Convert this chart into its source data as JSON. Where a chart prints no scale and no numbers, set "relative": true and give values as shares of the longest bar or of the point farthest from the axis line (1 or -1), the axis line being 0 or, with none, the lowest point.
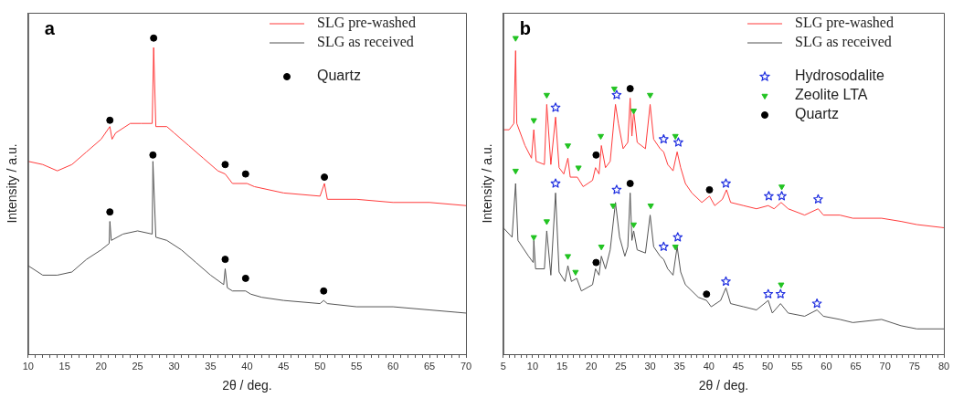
{
  "chart_data": [
    {
      "type": "line",
      "title": "a",
      "xlabel": "2θ / deg.",
      "ylabel": "Intensity / a.u.",
      "relative": true,
      "xlim": [
        10,
        70
      ],
      "legend": "top right",
      "grid": false,
      "xticks": [
        10,
        {
          "value": 11,
          "label": null
        },
        {
          "value": 12,
          "label": null
        },
        {
          "value": 13,
          "label": null
        },
        {
          "value": 14,
          "label": null
        },
        15,
        {
          "value": 16,
          "label": null
        },
        {
          "value": 17,
          "label": null
        },
        {
          "value": 18,
          "label": null
        },
        {
          "value": 19,
          "label": null
        },
        20,
        {
          "value": 21,
          "label": null
        },
        {
          "value": 22,
          "label": null
        },
        {
          "value": 23,
          "label": null
        },
        {
          "value": 24,
          "label": null
        },
        25,
        {
          "value": 26,
          "label": null
        },
        {
          "value": 27,
          "label": null
        },
        {
          "value": 28,
          "label": null
        },
        {
          "value": 29,
          "label": null
        },
        30,
        {
          "value": 31,
          "label": null
        },
        {
          "value": 32,
          "label": null
        },
        {
          "value": 33,
          "label": null
        },
        {
          "value": 34,
          "label": null
        },
        35,
        {
          "value": 36,
          "label": null
        },
        {
          "value": 37,
          "label": null
        },
        {
          "value": 38,
          "label": null
        },
        {
          "value": 39,
          "label": null
        },
        40,
        {
          "value": 41,
          "label": null
        },
        {
          "value": 42,
          "label": null
        },
        {
          "value": 43,
          "label": null
        },
        {
          "value": 44,
          "label": null
        },
        45,
        {
          "value": 46,
          "label": null
        },
        {
          "value": 47,
          "label": null
        },
        {
          "value": 48,
          "label": null
        },
        {
          "value": 49,
          "label": null
        },
        50,
        {
          "value": 51,
          "label": null
        },
        {
          "value": 52,
          "label": null
        },
        {
          "value": 53,
          "label": null
        },
        {
          "value": 54,
          "label": null
        },
        55,
        {
          "value": 56,
          "label": null
        },
        {
          "value": 57,
          "label": null
        },
        {
          "value": 58,
          "label": null
        },
        {
          "value": 59,
          "label": null
        },
        60,
        {
          "value": 61,
          "label": null
        },
        {
          "value": 62,
          "label": null
        },
        {
          "value": 63,
          "label": null
        },
        {
          "value": 64,
          "label": null
        },
        65,
        {
          "value": 66,
          "label": null
        },
        {
          "value": 67,
          "label": null
        },
        {
          "value": 68,
          "label": null
        },
        {
          "value": 69,
          "label": null
        },
        70
      ],
      "series": [
        {
          "name": "SLG pre-washed",
          "color": "#ff3b3b",
          "x": [
            10,
            12,
            14,
            16,
            18,
            20,
            21.2,
            21.5,
            22,
            24,
            25.5,
            27,
            27.2,
            27.5,
            29,
            30,
            32,
            34,
            36,
            37,
            38,
            40,
            41,
            45,
            50,
            50.6,
            51,
            55,
            60,
            65,
            70
          ],
          "values": [
            0.61,
            0.6,
            0.58,
            0.6,
            0.64,
            0.68,
            0.72,
            0.68,
            0.7,
            0.73,
            0.73,
            0.73,
            0.97,
            0.72,
            0.72,
            0.7,
            0.66,
            0.62,
            0.58,
            0.57,
            0.54,
            0.54,
            0.53,
            0.51,
            0.5,
            0.54,
            0.49,
            0.49,
            0.48,
            0.48,
            0.47
          ]
        },
        {
          "name": "SLG as received",
          "color": "#555555",
          "x": [
            10,
            12,
            14,
            16,
            18,
            20,
            21.1,
            21.2,
            21.4,
            23,
            25,
            27,
            27.1,
            27.5,
            29,
            31,
            33,
            35,
            36.8,
            37,
            37.3,
            38,
            39.8,
            40.5,
            42,
            45,
            50,
            50.5,
            51,
            55,
            60,
            65,
            70
          ],
          "values": [
            0.28,
            0.25,
            0.25,
            0.26,
            0.3,
            0.33,
            0.35,
            0.42,
            0.36,
            0.38,
            0.39,
            0.38,
            0.61,
            0.37,
            0.36,
            0.33,
            0.29,
            0.25,
            0.22,
            0.27,
            0.21,
            0.2,
            0.2,
            0.19,
            0.18,
            0.17,
            0.16,
            0.17,
            0.16,
            0.15,
            0.15,
            0.14,
            0.13
          ]
        },
        {
          "name": "Quartz",
          "type": "scatter",
          "marker": "circle",
          "color": "#000000",
          "x": [
            21.2,
            27.2,
            37,
            39.8,
            50.6,
            21.2,
            27.1,
            37,
            39.8,
            50.5
          ],
          "values": [
            0.74,
            1,
            0.6,
            0.57,
            0.56,
            0.45,
            0.63,
            0.3,
            0.24,
            0.2
          ]
        }
      ]
    },
    {
      "type": "line",
      "title": "b",
      "xlabel": "2θ / deg.",
      "ylabel": "Intensity / a.u.",
      "relative": true,
      "xlim": [
        5,
        80
      ],
      "legend": "top right",
      "grid": false,
      "xticks": [
        5,
        {
          "value": 6,
          "label": null
        },
        {
          "value": 7,
          "label": null
        },
        {
          "value": 8,
          "label": null
        },
        {
          "value": 9,
          "label": null
        },
        10,
        {
          "value": 11,
          "label": null
        },
        {
          "value": 12,
          "label": null
        },
        {
          "value": 13,
          "label": null
        },
        {
          "value": 14,
          "label": null
        },
        15,
        {
          "value": 16,
          "label": null
        },
        {
          "value": 17,
          "label": null
        },
        {
          "value": 18,
          "label": null
        },
        {
          "value": 19,
          "label": null
        },
        20,
        {
          "value": 21,
          "label": null
        },
        {
          "value": 22,
          "label": null
        },
        {
          "value": 23,
          "label": null
        },
        {
          "value": 24,
          "label": null
        },
        25,
        {
          "value": 26,
          "label": null
        },
        {
          "value": 27,
          "label": null
        },
        {
          "value": 28,
          "label": null
        },
        {
          "value": 29,
          "label": null
        },
        30,
        {
          "value": 31,
          "label": null
        },
        {
          "value": 32,
          "label": null
        },
        {
          "value": 33,
          "label": null
        },
        {
          "value": 34,
          "label": null
        },
        35,
        {
          "value": 36,
          "label": null
        },
        {
          "value": 37,
          "label": null
        },
        {
          "value": 38,
          "label": null
        },
        {
          "value": 39,
          "label": null
        },
        40,
        {
          "value": 41,
          "label": null
        },
        {
          "value": 42,
          "label": null
        },
        {
          "value": 43,
          "label": null
        },
        {
          "value": 44,
          "label": null
        },
        45,
        {
          "value": 46,
          "label": null
        },
        {
          "value": 47,
          "label": null
        },
        {
          "value": 48,
          "label": null
        },
        {
          "value": 49,
          "label": null
        },
        50,
        {
          "value": 51,
          "label": null
        },
        {
          "value": 52,
          "label": null
        },
        {
          "value": 53,
          "label": null
        },
        {
          "value": 54,
          "label": null
        },
        55,
        {
          "value": 56,
          "label": null
        },
        {
          "value": 57,
          "label": null
        },
        {
          "value": 58,
          "label": null
        },
        {
          "value": 59,
          "label": null
        },
        60,
        {
          "value": 61,
          "label": null
        },
        {
          "value": 62,
          "label": null
        },
        {
          "value": 63,
          "label": null
        },
        {
          "value": 64,
          "label": null
        },
        65,
        {
          "value": 66,
          "label": null
        },
        {
          "value": 67,
          "label": null
        },
        {
          "value": 68,
          "label": null
        },
        {
          "value": 69,
          "label": null
        },
        70,
        {
          "value": 71,
          "label": null
        },
        {
          "value": 72,
          "label": null
        },
        {
          "value": 73,
          "label": null
        },
        {
          "value": 74,
          "label": null
        },
        75,
        {
          "value": 76,
          "label": null
        },
        {
          "value": 77,
          "label": null
        },
        {
          "value": 78,
          "label": null
        },
        {
          "value": 79,
          "label": null
        },
        80
      ],
      "series": [
        {
          "name": "SLG pre-washed",
          "color": "#ff3b3b",
          "x": [
            5,
            6,
            6.8,
            7.1,
            7.3,
            8.7,
            9.8,
            10.2,
            10.6,
            12,
            12.4,
            13.1,
            13.9,
            14.5,
            15.3,
            16,
            16.4,
            17.6,
            18.6,
            20.2,
            20.7,
            21.3,
            21.7,
            22.4,
            23.2,
            24.1,
            24.6,
            25.4,
            26.2,
            26.6,
            26.9,
            27.2,
            27.8,
            29.2,
            30,
            30.6,
            31.7,
            32.3,
            33,
            33.9,
            34.6,
            35.2,
            36,
            37.1,
            38.8,
            40.1,
            41,
            42.3,
            43,
            43.7,
            45.9,
            48.1,
            50.1,
            51.1,
            52.3,
            53.5,
            56.3,
            58.6,
            59.5,
            62.3,
            64.5,
            69.4,
            72.7,
            75.4,
            80
          ],
          "values": [
            0.71,
            0.71,
            0.73,
            0.96,
            0.73,
            0.66,
            0.62,
            0.71,
            0.61,
            0.6,
            0.79,
            0.6,
            0.75,
            0.59,
            0.57,
            0.62,
            0.56,
            0.56,
            0.53,
            0.55,
            0.59,
            0.57,
            0.66,
            0.59,
            0.61,
            0.79,
            0.73,
            0.65,
            0.67,
            0.81,
            0.69,
            0.77,
            0.67,
            0.65,
            0.79,
            0.68,
            0.65,
            0.64,
            0.6,
            0.58,
            0.64,
            0.59,
            0.54,
            0.51,
            0.48,
            0.5,
            0.47,
            0.49,
            0.52,
            0.48,
            0.47,
            0.46,
            0.47,
            0.46,
            0.48,
            0.46,
            0.44,
            0.46,
            0.44,
            0.44,
            0.43,
            0.43,
            0.42,
            0.41,
            0.4
          ]
        },
        {
          "name": "SLG as received",
          "color": "#555555",
          "x": [
            5,
            6.5,
            7.1,
            7.5,
            9.3,
            10.1,
            10.2,
            10.5,
            12,
            12.4,
            13.1,
            13.9,
            14.5,
            15.5,
            16,
            16.6,
            17.5,
            18.3,
            20.2,
            20.7,
            21.3,
            21.7,
            22.4,
            23.2,
            24.1,
            24.8,
            25.7,
            26.2,
            26.6,
            26.9,
            27.2,
            27.8,
            29.2,
            30,
            30.6,
            31.7,
            32.3,
            33,
            33.9,
            34.6,
            35.2,
            36,
            38.2,
            39.6,
            40.4,
            42,
            42.9,
            43.7,
            45.9,
            48.1,
            50.1,
            50.8,
            52.2,
            53.5,
            56.3,
            58.4,
            59.5,
            62.3,
            64.5,
            69.4,
            72.7,
            75.4,
            80
          ],
          "values": [
            0.4,
            0.37,
            0.54,
            0.36,
            0.31,
            0.29,
            0.36,
            0.27,
            0.27,
            0.39,
            0.25,
            0.51,
            0.26,
            0.23,
            0.28,
            0.23,
            0.24,
            0.2,
            0.22,
            0.27,
            0.25,
            0.31,
            0.27,
            0.33,
            0.48,
            0.37,
            0.31,
            0.34,
            0.51,
            0.36,
            0.39,
            0.33,
            0.32,
            0.44,
            0.34,
            0.31,
            0.3,
            0.27,
            0.25,
            0.34,
            0.26,
            0.22,
            0.18,
            0.17,
            0.15,
            0.17,
            0.21,
            0.16,
            0.15,
            0.14,
            0.17,
            0.13,
            0.16,
            0.13,
            0.12,
            0.14,
            0.12,
            0.11,
            0.1,
            0.11,
            0.09,
            0.08,
            0.08
          ]
        },
        {
          "name": "Hydrosodalite",
          "type": "scatter",
          "marker": "star",
          "color": "#1f2fe0",
          "x": [
            13.9,
            24.3,
            32.3,
            34.8,
            42.9,
            50.2,
            52.4,
            58.6,
            13.9,
            24.3,
            32.3,
            34.7,
            42.9,
            50.1,
            52.2,
            58.4
          ],
          "values": [
            0.78,
            0.82,
            0.68,
            0.67,
            0.54,
            0.5,
            0.5,
            0.49,
            0.54,
            0.52,
            0.34,
            0.37,
            0.23,
            0.19,
            0.19,
            0.16
          ]
        },
        {
          "name": "Zeolite LTA",
          "type": "scatter",
          "marker": "triangle",
          "color": "#22c322",
          "x": [
            7.1,
            10.2,
            12.4,
            16,
            17.8,
            21.6,
            23.9,
            27.2,
            30,
            34.3,
            52.4,
            7.1,
            10.2,
            12.4,
            16,
            17.3,
            21.7,
            23.7,
            27.2,
            30.1,
            34.3,
            52.3
          ],
          "values": [
            1,
            0.74,
            0.82,
            0.66,
            0.59,
            0.69,
            0.84,
            0.77,
            0.82,
            0.69,
            0.53,
            0.58,
            0.37,
            0.42,
            0.31,
            0.26,
            0.34,
            0.47,
            0.41,
            0.47,
            0.34,
            0.22
          ]
        },
        {
          "name": "Quartz",
          "type": "scatter",
          "marker": "circle",
          "color": "#000000",
          "x": [
            20.8,
            26.6,
            40.1,
            20.8,
            26.6,
            39.6
          ],
          "values": [
            0.63,
            0.84,
            0.52,
            0.29,
            0.54,
            0.19
          ]
        }
      ]
    }
  ]
}
